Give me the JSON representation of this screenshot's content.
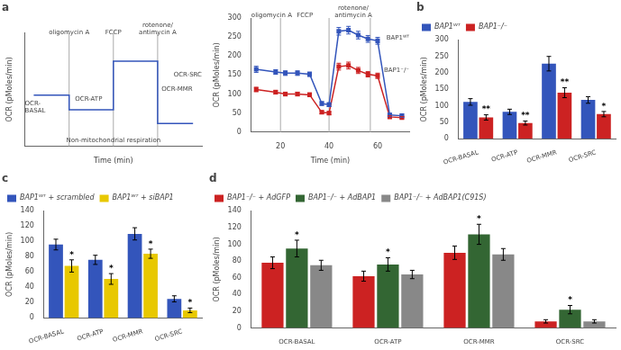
{
  "chart_data": [
    {
      "type": "line",
      "title": "a",
      "xlabel": "Time (min)",
      "ylabel": "OCR (pMoles/min)",
      "x": [
        0.5,
        2.5,
        2.5,
        5.0,
        5.0,
        7.5,
        7.5,
        9.5
      ],
      "series": [
        {
          "color": "#3355bb",
          "values": [
            4.5,
            4.5,
            3.2,
            3.2,
            7.5,
            7.5,
            2.0,
            2.0
          ]
        }
      ],
      "xlim": [
        0,
        10
      ],
      "ylim": [
        0,
        10
      ],
      "tick_labels": false,
      "grid": false,
      "vlines": [
        2.5,
        5.0,
        7.5
      ],
      "annotations": [
        {
          "text": "oligomycin A",
          "x": 2.5,
          "y": 9.7
        },
        {
          "text": "FCCP",
          "x": 5.0,
          "y": 9.7
        },
        {
          "text": "rotenone/\nantimycin A",
          "x": 7.5,
          "y": 9.7
        },
        {
          "text": "Non-mitochondrial respiration",
          "x": 5.0,
          "y": 0.2
        },
        {
          "text": "OCR-\nBASAL",
          "x": 0.05,
          "y": 2.8
        },
        {
          "text": "OCR-ATP",
          "x": 3.6,
          "y": 3.85
        },
        {
          "text": "OCR-MMR",
          "x": 8.6,
          "y": 4.75
        },
        {
          "text": "OCR-SRC",
          "x": 9.3,
          "y": 6.0
        }
      ]
    },
    {
      "type": "line",
      "xlabel": "Time (min)",
      "ylabel": "OCR (pMoles/min)",
      "x": [
        10,
        18,
        22,
        27,
        32,
        37,
        40,
        44,
        48,
        52,
        56,
        60,
        65,
        70
      ],
      "series": [
        {
          "color": "#3355bb",
          "marker": "square",
          "values": [
            165,
            158,
            155,
            155,
            152,
            75,
            72,
            265,
            268,
            255,
            245,
            240,
            45,
            43
          ],
          "errors": [
            8,
            6,
            6,
            6,
            6,
            5,
            5,
            10,
            10,
            10,
            9,
            9,
            4,
            4
          ]
        },
        {
          "color": "#cc2222",
          "marker": "square",
          "values": [
            112,
            105,
            100,
            100,
            98,
            52,
            50,
            172,
            175,
            162,
            152,
            148,
            40,
            38
          ],
          "errors": [
            6,
            5,
            5,
            5,
            5,
            4,
            4,
            9,
            9,
            8,
            7,
            7,
            3,
            3
          ]
        }
      ],
      "xlim": [
        8,
        73
      ],
      "ylim": [
        0,
        300
      ],
      "xticks": [
        20,
        40,
        60
      ],
      "yticks": [
        0,
        50,
        100,
        150,
        200,
        250,
        300
      ],
      "grid": false,
      "vlines": [
        20,
        40,
        57
      ],
      "annotations": [
        {
          "text": "oligomycin A",
          "x": 14,
          "y": 298
        },
        {
          "text": "FCCP",
          "x": 30,
          "y": 298
        },
        {
          "text": "rotenone/\nantimycin A",
          "x": 50,
          "y": 298
        },
        {
          "text": "BAP1ᵂᵀ",
          "x": 71,
          "y": 240
        },
        {
          "text": "BAP1⁻/⁻",
          "x": 71,
          "y": 155
        }
      ]
    },
    {
      "type": "bar",
      "title": "b",
      "ylabel": "OCR (pMoles/min)",
      "categories": [
        "OCR-BASAL",
        "OCR-ATP",
        "OCR-MMR",
        "OCR-SRC"
      ],
      "series": [
        {
          "name": "BAP1ᵂᵀ",
          "color": "#3355bb",
          "values": [
            112,
            82,
            228,
            118
          ],
          "errors": [
            10,
            8,
            22,
            10
          ]
        },
        {
          "name": "BAP1⁻/⁻",
          "color": "#cc2222",
          "values": [
            65,
            48,
            140,
            75
          ],
          "errors": [
            8,
            6,
            15,
            8
          ],
          "significance": [
            "**",
            "**",
            "**",
            "*"
          ]
        }
      ],
      "ylim": [
        0,
        300
      ],
      "yticks": [
        0,
        50,
        100,
        150,
        200,
        250,
        300
      ],
      "grid": false,
      "legend": "upper left"
    },
    {
      "type": "bar",
      "title": "c",
      "ylabel": "OCR (pMoles/min)",
      "categories": [
        "OCR-BASAL",
        "OCR-ATP",
        "OCR-MMR",
        "OCR-SRC"
      ],
      "series": [
        {
          "name": "BAP1ᵂᵀ + scrambled",
          "color": "#3355bb",
          "values": [
            96,
            76,
            110,
            25
          ],
          "errors": [
            7,
            6,
            8,
            4
          ]
        },
        {
          "name": "BAP1ᵂᵀ + siBAP1",
          "color": "#e8c800",
          "values": [
            68,
            51,
            84,
            10
          ],
          "errors": [
            8,
            7,
            6,
            3
          ],
          "significance": [
            "*",
            "*",
            "*",
            "*"
          ]
        }
      ],
      "ylim": [
        0,
        140
      ],
      "yticks": [
        0,
        20,
        40,
        60,
        80,
        100,
        120,
        140
      ],
      "grid": false,
      "legend": "upper left"
    },
    {
      "type": "bar",
      "title": "d",
      "ylabel": "OCR (pMoles/min)",
      "categories": [
        "OCR-BASAL",
        "OCR-ATP",
        "OCR-MMR",
        "OCR-SRC"
      ],
      "series": [
        {
          "name": "BAP1⁻/⁻ + AdGFP",
          "color": "#cc2222",
          "values": [
            78,
            62,
            90,
            8
          ],
          "errors": [
            7,
            6,
            8,
            2
          ]
        },
        {
          "name": "BAP1⁻/⁻ + AdBAP1",
          "color": "#336633",
          "values": [
            95,
            76,
            112,
            22
          ],
          "errors": [
            10,
            8,
            12,
            5
          ],
          "significance": [
            "*",
            "*",
            "*",
            "*"
          ]
        },
        {
          "name": "BAP1⁻/⁻ + AdBAP1(C91S)",
          "color": "#888888",
          "values": [
            75,
            64,
            88,
            8
          ],
          "errors": [
            6,
            5,
            7,
            2
          ]
        }
      ],
      "ylim": [
        0,
        140
      ],
      "yticks": [
        0,
        20,
        40,
        60,
        80,
        100,
        120,
        140
      ],
      "grid": false,
      "legend": "upper left"
    }
  ]
}
